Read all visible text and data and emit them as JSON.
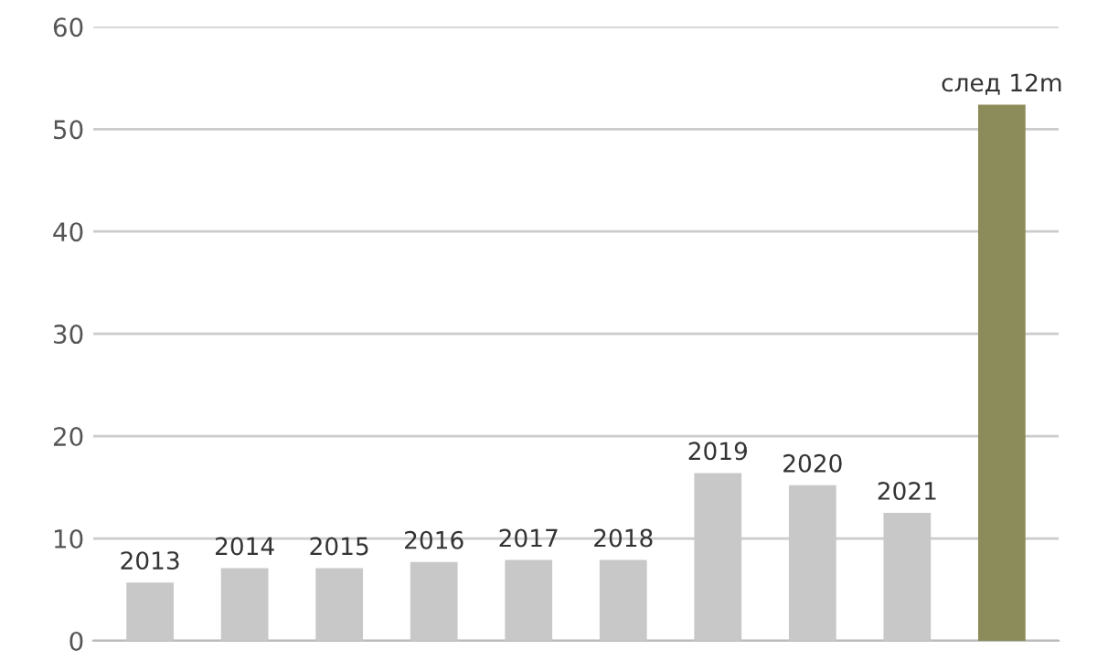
{
  "chart_data": {
    "type": "bar",
    "categories": [
      "2013",
      "2014",
      "2015",
      "2016",
      "2017",
      "2018",
      "2019",
      "2020",
      "2021",
      "след 12m"
    ],
    "values": [
      5.7,
      7.1,
      7.1,
      7.7,
      7.9,
      7.9,
      16.4,
      15.2,
      12.5,
      52.4
    ],
    "colors": [
      "#c8c8c8",
      "#c8c8c8",
      "#c8c8c8",
      "#c8c8c8",
      "#c8c8c8",
      "#c8c8c8",
      "#c8c8c8",
      "#c8c8c8",
      "#c8c8c8",
      "#8c8c5a"
    ],
    "ylim": [
      0,
      60
    ],
    "yticks": [
      0,
      10,
      20,
      30,
      40,
      50,
      60
    ],
    "grid": "y"
  }
}
